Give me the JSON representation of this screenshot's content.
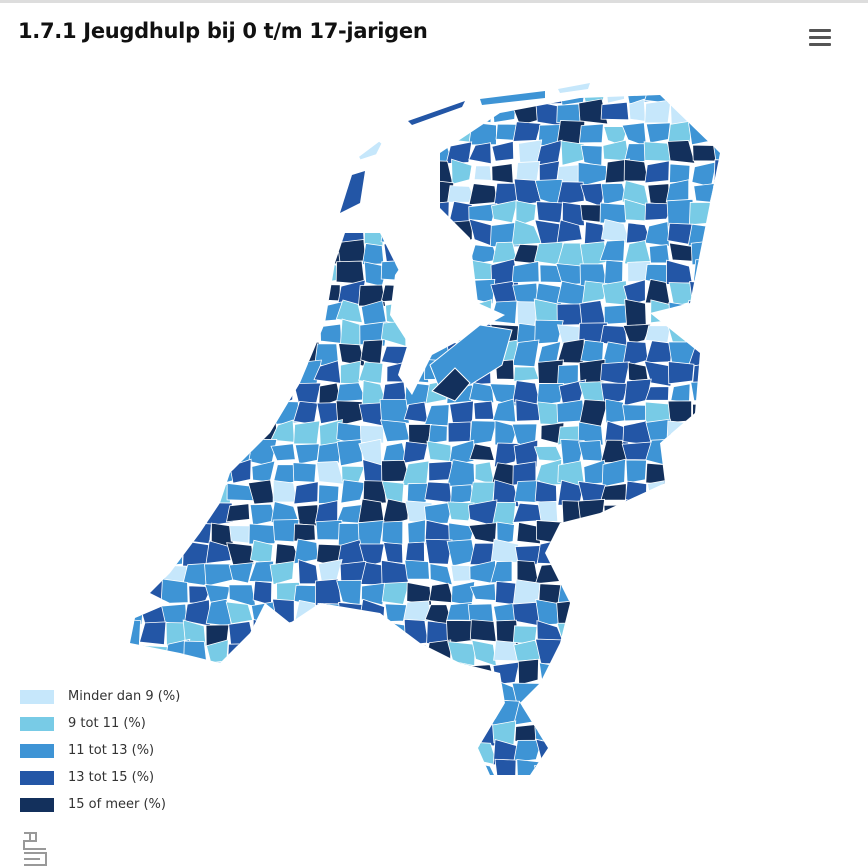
{
  "header": {
    "title": "1.7.1 Jeugdhulp bij 0 t/m 17-jarigen"
  },
  "legend": {
    "items": [
      {
        "label": "Minder dan 9 (%)",
        "color": "#c6e7fb"
      },
      {
        "label": "9 tot 11 (%)",
        "color": "#78cbe6"
      },
      {
        "label": "11 tot 13 (%)",
        "color": "#3e94d5"
      },
      {
        "label": "13 tot 15 (%)",
        "color": "#2356a6"
      },
      {
        "label": "15 of meer (%)",
        "color": "#13305c"
      }
    ]
  }
}
